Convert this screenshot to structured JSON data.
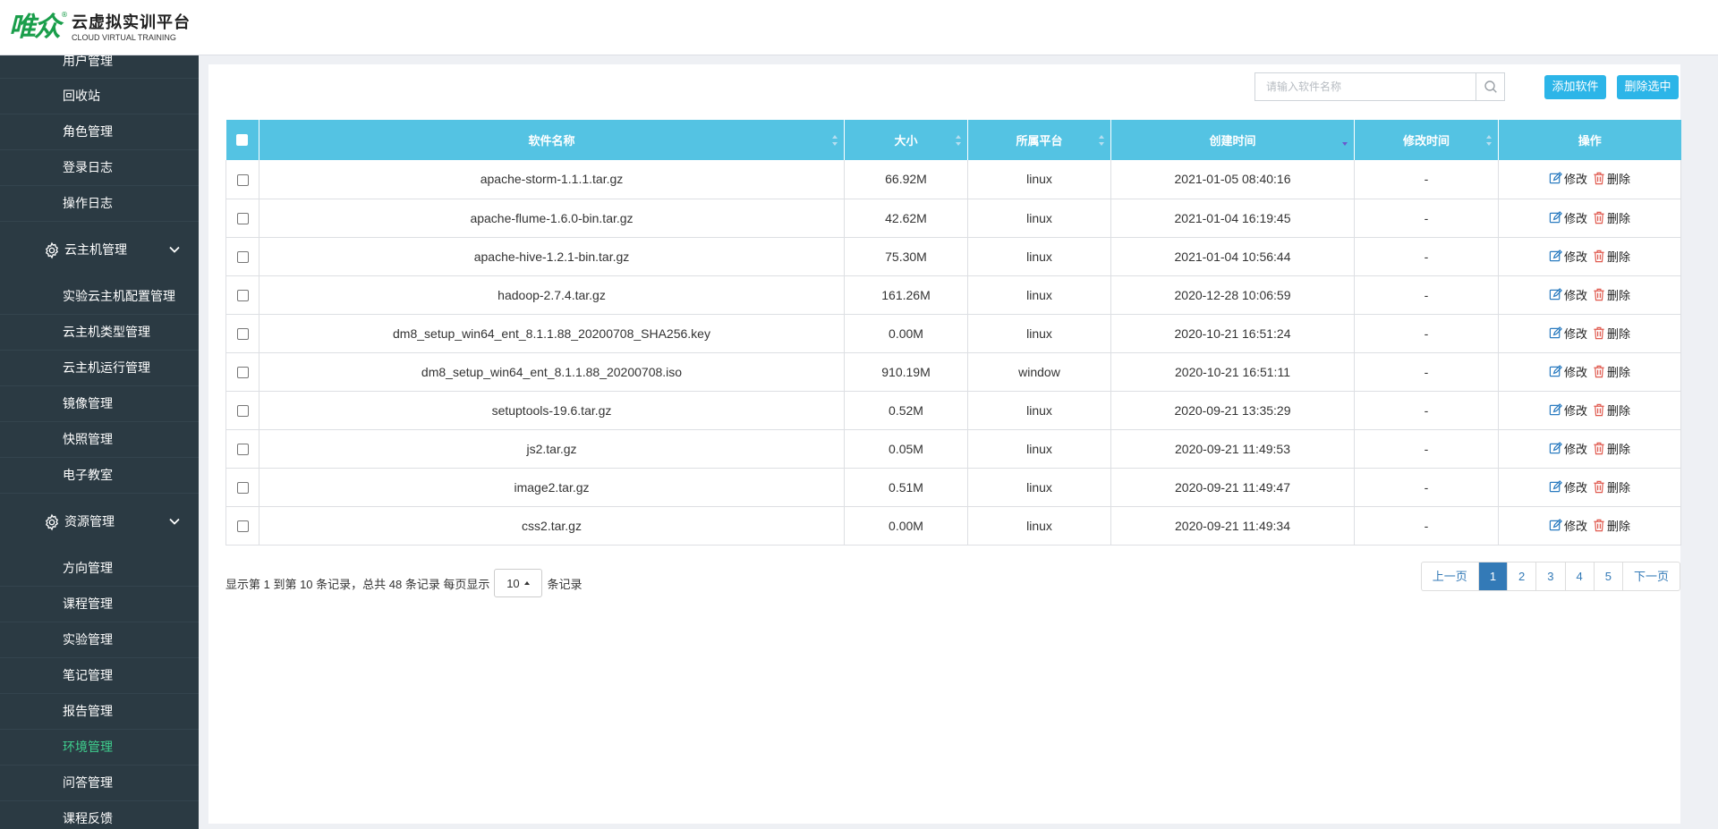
{
  "logo": {
    "mark": "唯众",
    "reg": "®",
    "title": "云虚拟实训平台",
    "subtitle": "CLOUD VIRTUAL TRAINING"
  },
  "sidebar": {
    "top_items": [
      "用户管理",
      "回收站",
      "角色管理",
      "登录日志",
      "操作日志"
    ],
    "group1": {
      "label": "云主机管理",
      "items": [
        "实验云主机配置管理",
        "云主机类型管理",
        "云主机运行管理",
        "镜像管理",
        "快照管理",
        "电子教室"
      ]
    },
    "group2": {
      "label": "资源管理",
      "items": [
        "方向管理",
        "课程管理",
        "实验管理",
        "笔记管理",
        "报告管理",
        "环境管理",
        "问答管理",
        "课程反馈"
      ],
      "active": "环境管理"
    }
  },
  "toolbar": {
    "search_placeholder": "请输入软件名称",
    "add_label": "添加软件",
    "delete_selected_label": "删除选中"
  },
  "table": {
    "headers": [
      "软件名称",
      "大小",
      "所属平台",
      "创建时间",
      "修改时间",
      "操作"
    ],
    "rows": [
      {
        "name": "apache-storm-1.1.1.tar.gz",
        "size": "66.92M",
        "platform": "linux",
        "created": "2021-01-05 08:40:16",
        "modified": "-"
      },
      {
        "name": "apache-flume-1.6.0-bin.tar.gz",
        "size": "42.62M",
        "platform": "linux",
        "created": "2021-01-04 16:19:45",
        "modified": "-"
      },
      {
        "name": "apache-hive-1.2.1-bin.tar.gz",
        "size": "75.30M",
        "platform": "linux",
        "created": "2021-01-04 10:56:44",
        "modified": "-"
      },
      {
        "name": "hadoop-2.7.4.tar.gz",
        "size": "161.26M",
        "platform": "linux",
        "created": "2020-12-28 10:06:59",
        "modified": "-"
      },
      {
        "name": "dm8_setup_win64_ent_8.1.1.88_20200708_SHA256.key",
        "size": "0.00M",
        "platform": "linux",
        "created": "2020-10-21 16:51:24",
        "modified": "-"
      },
      {
        "name": "dm8_setup_win64_ent_8.1.1.88_20200708.iso",
        "size": "910.19M",
        "platform": "window",
        "created": "2020-10-21 16:51:11",
        "modified": "-"
      },
      {
        "name": "setuptools-19.6.tar.gz",
        "size": "0.52M",
        "platform": "linux",
        "created": "2020-09-21 13:35:29",
        "modified": "-"
      },
      {
        "name": "js2.tar.gz",
        "size": "0.05M",
        "platform": "linux",
        "created": "2020-09-21 11:49:53",
        "modified": "-"
      },
      {
        "name": "image2.tar.gz",
        "size": "0.51M",
        "platform": "linux",
        "created": "2020-09-21 11:49:47",
        "modified": "-"
      },
      {
        "name": "css2.tar.gz",
        "size": "0.00M",
        "platform": "linux",
        "created": "2020-09-21 11:49:34",
        "modified": "-"
      }
    ],
    "edit_label": "修改",
    "delete_label": "删除"
  },
  "footer": {
    "info_prefix": "显示第 1 到第 10 条记录，总共 48 条记录 每页显示",
    "page_size": "10",
    "info_suffix": "条记录"
  },
  "pagination": {
    "prev": "上一页",
    "pages": [
      "1",
      "2",
      "3",
      "4",
      "5"
    ],
    "active": "1",
    "next": "下一页"
  },
  "colors": {
    "sidebar_bg": "#2b3a43",
    "active_menu": "#3fcf8e",
    "table_header": "#54c3e3",
    "button": "#2cb5e8",
    "page_active": "#337ab7",
    "delete_icon": "#e05a4f",
    "edit_icon": "#2a7bc0"
  }
}
